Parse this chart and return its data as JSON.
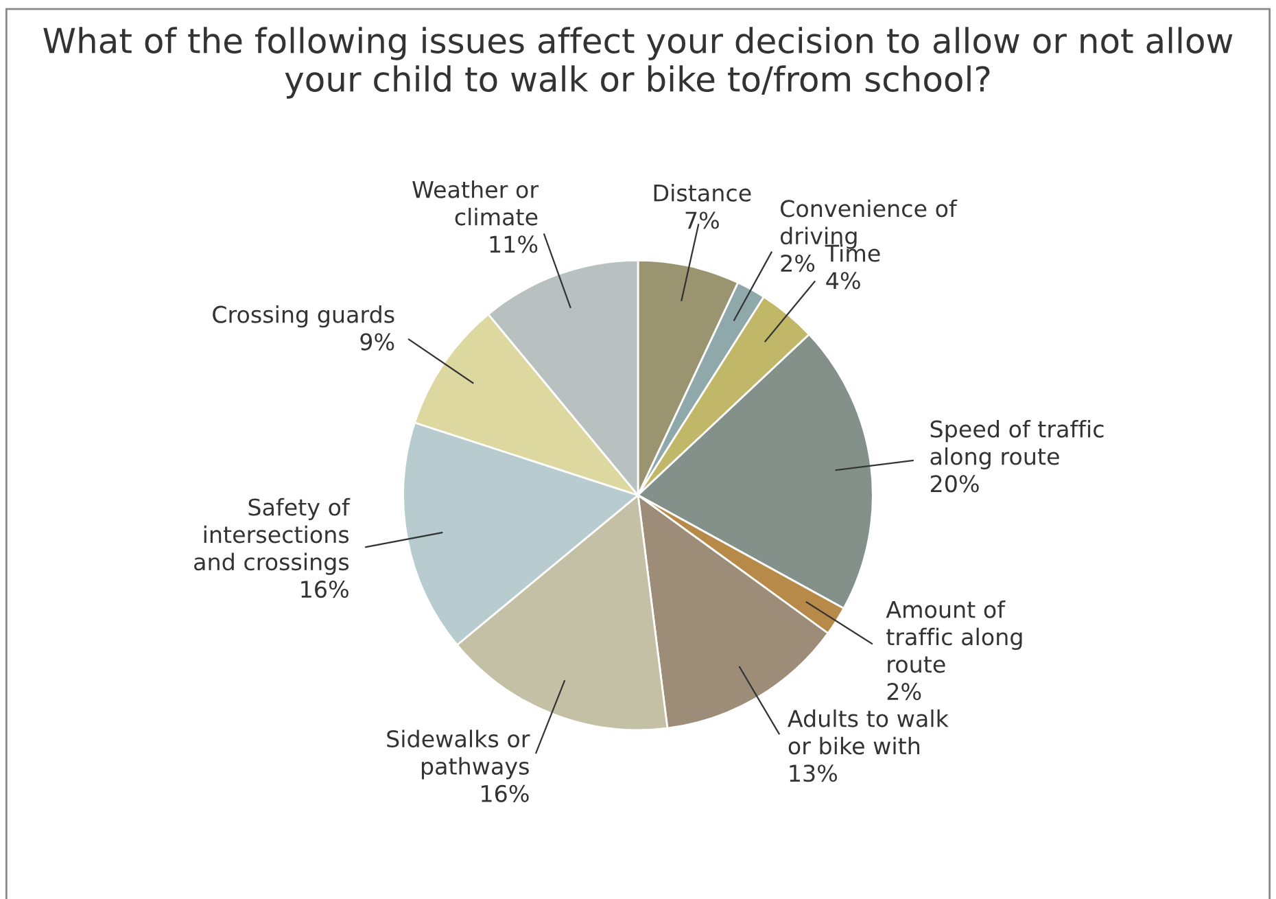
{
  "chart_data": {
    "type": "pie",
    "title": "What of the following issues affect your decision to allow or not allow your child to walk or bike to/from school?",
    "categories": [
      "Distance",
      "Convenience of\ndriving",
      "Time",
      "Speed of traffic\nalong route",
      "Amount of\ntraffic along\nroute",
      "Adults to walk\nor bike with",
      "Sidewalks or\npathways",
      "Safety of\nintersections\nand crossings",
      "Crossing guards",
      "Weather or\nclimate"
    ],
    "values": [
      7,
      2,
      4,
      20,
      2,
      13,
      16,
      16,
      9,
      11
    ],
    "colors": [
      "#9a9470",
      "#8fa8aa",
      "#c0b868",
      "#84908a",
      "#b88a4a",
      "#9c8c78",
      "#c4c0a6",
      "#b8ccd0",
      "#ddd8a0",
      "#b8c0c0"
    ],
    "value_labels": [
      "7%",
      "2%",
      "4%",
      "20%",
      "2%",
      "13%",
      "16%",
      "16%",
      "9%",
      "11%"
    ]
  }
}
